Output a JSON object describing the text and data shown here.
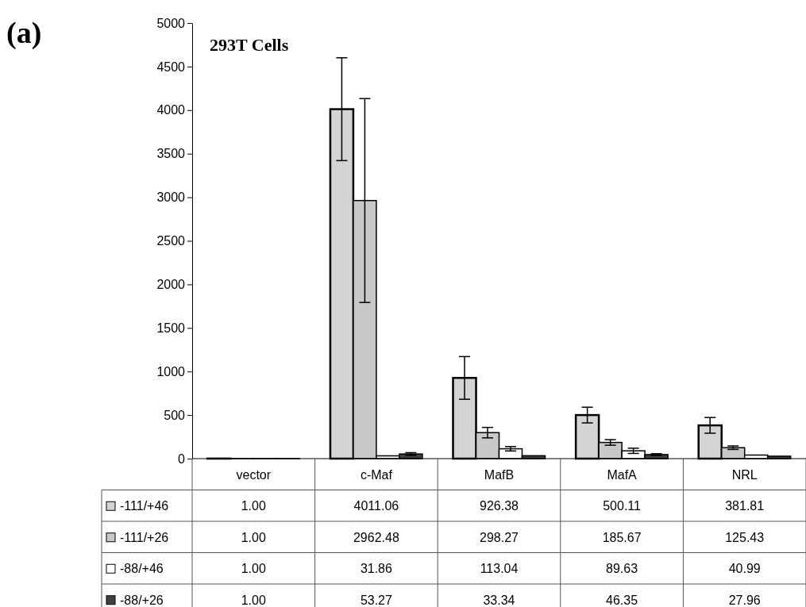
{
  "chart_data": {
    "type": "bar",
    "title": "293T Cells",
    "annotations": [
      "(a)"
    ],
    "categories": [
      "vector",
      "c-Maf",
      "MafB",
      "MafA",
      "NRL"
    ],
    "series": [
      {
        "name": "-111/+46",
        "color": "#d4d4d4",
        "values": [
          1.0,
          4011.06,
          926.38,
          500.11,
          381.81
        ],
        "value_labels": [
          "1.00",
          "4011.06",
          "926.38",
          "500.11",
          "381.81"
        ],
        "errors": [
          null,
          590,
          245,
          90,
          90
        ]
      },
      {
        "name": "-111/+26",
        "color": "#c8c8c8",
        "values": [
          1.0,
          2962.48,
          298.27,
          185.67,
          125.43
        ],
        "value_labels": [
          "1.00",
          "2962.48",
          "298.27",
          "185.67",
          "125.43"
        ],
        "errors": [
          null,
          1170,
          60,
          32,
          20
        ]
      },
      {
        "name": "-88/+46",
        "color": "#ffffff",
        "values": [
          1.0,
          31.86,
          113.04,
          89.63,
          40.99
        ],
        "value_labels": [
          "1.00",
          "31.86",
          "113.04",
          "89.63",
          "40.99"
        ],
        "errors": [
          null,
          null,
          25,
          30,
          null
        ]
      },
      {
        "name": "-88/+26",
        "color": "#404040",
        "values": [
          1.0,
          53.27,
          33.34,
          46.35,
          27.96
        ],
        "value_labels": [
          "1.00",
          "53.27",
          "33.34",
          "46.35",
          "27.96"
        ],
        "errors": [
          null,
          15,
          null,
          10,
          null
        ]
      }
    ],
    "ylim": [
      0,
      5000
    ],
    "yticks": [
      0,
      500,
      1000,
      1500,
      2000,
      2500,
      3000,
      3500,
      4000,
      4500,
      5000
    ],
    "grid": false,
    "legend": "bottom"
  }
}
